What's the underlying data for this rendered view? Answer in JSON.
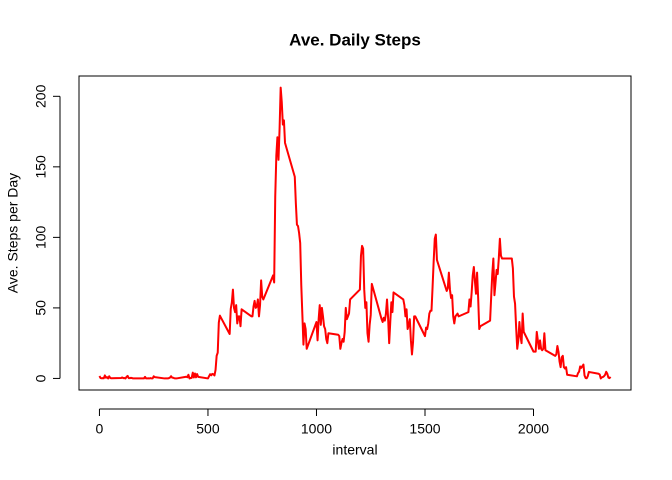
{
  "chart_data": {
    "type": "line",
    "title": "Ave. Daily Steps",
    "x_label": "interval",
    "y_label": "Ave. Steps per Day",
    "x": [
      0,
      5,
      10,
      15,
      20,
      25,
      30,
      35,
      40,
      45,
      50,
      55,
      100,
      105,
      110,
      115,
      120,
      125,
      130,
      135,
      140,
      145,
      150,
      155,
      200,
      205,
      210,
      215,
      220,
      225,
      230,
      235,
      240,
      245,
      250,
      255,
      300,
      305,
      310,
      315,
      320,
      325,
      330,
      335,
      340,
      345,
      350,
      355,
      400,
      405,
      410,
      415,
      420,
      425,
      430,
      435,
      440,
      445,
      450,
      455,
      500,
      505,
      510,
      515,
      520,
      525,
      530,
      535,
      540,
      545,
      550,
      555,
      600,
      605,
      610,
      615,
      620,
      625,
      630,
      635,
      640,
      645,
      650,
      655,
      700,
      705,
      710,
      715,
      720,
      725,
      730,
      735,
      740,
      745,
      750,
      755,
      800,
      805,
      810,
      815,
      820,
      825,
      830,
      835,
      840,
      845,
      850,
      855,
      900,
      905,
      910,
      915,
      920,
      925,
      930,
      935,
      940,
      945,
      950,
      955,
      1000,
      1005,
      1010,
      1015,
      1020,
      1025,
      1030,
      1035,
      1040,
      1045,
      1050,
      1055,
      1100,
      1105,
      1110,
      1115,
      1120,
      1125,
      1130,
      1135,
      1140,
      1145,
      1150,
      1155,
      1200,
      1205,
      1210,
      1215,
      1220,
      1225,
      1230,
      1235,
      1240,
      1245,
      1250,
      1255,
      1300,
      1305,
      1310,
      1315,
      1320,
      1325,
      1330,
      1335,
      1340,
      1345,
      1350,
      1355,
      1400,
      1405,
      1410,
      1415,
      1420,
      1425,
      1430,
      1435,
      1440,
      1445,
      1450,
      1455,
      1500,
      1505,
      1510,
      1515,
      1520,
      1525,
      1530,
      1535,
      1540,
      1545,
      1550,
      1555,
      1600,
      1605,
      1610,
      1615,
      1620,
      1625,
      1630,
      1635,
      1640,
      1645,
      1650,
      1655,
      1700,
      1705,
      1710,
      1715,
      1720,
      1725,
      1730,
      1735,
      1740,
      1745,
      1750,
      1755,
      1800,
      1805,
      1810,
      1815,
      1820,
      1825,
      1830,
      1835,
      1840,
      1845,
      1850,
      1855,
      1900,
      1905,
      1910,
      1915,
      1920,
      1925,
      1930,
      1935,
      1940,
      1945,
      1950,
      1955,
      2000,
      2005,
      2010,
      2015,
      2020,
      2025,
      2030,
      2035,
      2040,
      2045,
      2050,
      2055,
      2100,
      2105,
      2110,
      2115,
      2120,
      2125,
      2130,
      2135,
      2140,
      2145,
      2150,
      2155,
      2200,
      2205,
      2210,
      2215,
      2220,
      2225,
      2230,
      2235,
      2240,
      2245,
      2250,
      2255,
      2300,
      2305,
      2310,
      2315,
      2320,
      2325,
      2330,
      2335,
      2340,
      2345,
      2350,
      2355
    ],
    "series": [
      {
        "name": "Ave. Steps per Day",
        "color": "#ff0000",
        "values": [
          1.7,
          0.3,
          0.1,
          0.2,
          0.1,
          2.1,
          0.5,
          0.9,
          0,
          1.5,
          0.3,
          0.1,
          0.3,
          0.7,
          0.2,
          0.3,
          0,
          1.1,
          1.8,
          0.2,
          0.2,
          0.4,
          0.3,
          0,
          0,
          0,
          1.1,
          0,
          0,
          0.1,
          0,
          0.2,
          0,
          0,
          1.5,
          0.9,
          0,
          0,
          0,
          0,
          0.2,
          0.6,
          1.6,
          0.6,
          0.5,
          0.1,
          0,
          0,
          1.2,
          0.9,
          2.6,
          0,
          0.3,
          0.4,
          4.1,
          0.7,
          3.5,
          0.8,
          3.1,
          1.1,
          0,
          1.6,
          3,
          2.2,
          3.2,
          3,
          2.1,
          6.1,
          16,
          18.3,
          39.5,
          44.5,
          31.5,
          49.3,
          53.8,
          63,
          50,
          47,
          52,
          39,
          44,
          44,
          37,
          49,
          44,
          44,
          51,
          55,
          50,
          51,
          56,
          44,
          52,
          69.5,
          58,
          56,
          73,
          68,
          129,
          158,
          171,
          155,
          177,
          206.2,
          196,
          180,
          183,
          167,
          143,
          124,
          109,
          108,
          103,
          96,
          66,
          45,
          24,
          39,
          35,
          21,
          40,
          27,
          42,
          52,
          38,
          50,
          44,
          37,
          35,
          28,
          25,
          32,
          31,
          30,
          21,
          25,
          28,
          26,
          33,
          50,
          42,
          44,
          46,
          56,
          63,
          87,
          94,
          92,
          63,
          50,
          54,
          32,
          26,
          38,
          45,
          67,
          42,
          40,
          43,
          41,
          46,
          56,
          43,
          25,
          40,
          54,
          47,
          61,
          56,
          52,
          44,
          49,
          35,
          38,
          42,
          27,
          17,
          26,
          44,
          44,
          30,
          36,
          35,
          39,
          46,
          48,
          48,
          65,
          83,
          99,
          102,
          84,
          62,
          64,
          75,
          63,
          57,
          59,
          44,
          39,
          44,
          45,
          46,
          44,
          47,
          56,
          51,
          61,
          73,
          79,
          69,
          60,
          75,
          57,
          35,
          37,
          41,
          58,
          74,
          85,
          59,
          68,
          77,
          74,
          85,
          99,
          87,
          85,
          85,
          78,
          58,
          53,
          36,
          21,
          27,
          40,
          30,
          25,
          46,
          33,
          19,
          19,
          19,
          33,
          27,
          21,
          27,
          21,
          20,
          21,
          32,
          20,
          16,
          17,
          23,
          19,
          12,
          8,
          15,
          16,
          8,
          7,
          8,
          2.6,
          1.5,
          3.7,
          4.8,
          8.5,
          7.5,
          8.7,
          9.8,
          2.2,
          0.3,
          0.1,
          1.6,
          4.6,
          3.3,
          2.8,
          0,
          0.8,
          1,
          1.6,
          2.6,
          4.7,
          3.3,
          0.6,
          0.2,
          1.1
        ]
      }
    ],
    "xlim": [
      -94.2,
      2449.2
    ],
    "ylim": [
      -8.2,
      214.4
    ],
    "xticks": [
      0,
      500,
      1000,
      1500,
      2000
    ],
    "yticks": [
      0,
      50,
      100,
      150,
      200
    ]
  }
}
